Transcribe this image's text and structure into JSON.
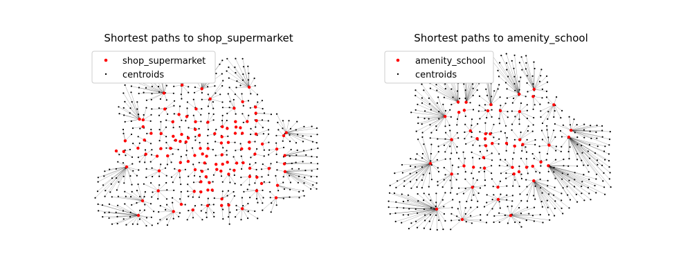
{
  "chart_data": [
    {
      "type": "scatter",
      "title": "Shortest paths to shop_supermarket",
      "xlabel": "",
      "ylabel": "",
      "grid": false,
      "axes_visible": false,
      "legend_placement": "upper-left",
      "series": [
        {
          "name": "shop_supermarket",
          "color": "#ff0000",
          "marker": "dot-large"
        },
        {
          "name": "centroids",
          "color": "#000000",
          "marker": "dot-small"
        }
      ],
      "overlay": "thin black line segments from each centroid to its nearest shop_supermarket",
      "seed": 11,
      "target_density": 0.62
    },
    {
      "type": "scatter",
      "title": "Shortest paths to amenity_school",
      "xlabel": "",
      "ylabel": "",
      "grid": false,
      "axes_visible": false,
      "legend_placement": "upper-left",
      "series": [
        {
          "name": "amenity_school",
          "color": "#ff0000",
          "marker": "dot-large"
        },
        {
          "name": "centroids",
          "color": "#000000",
          "marker": "dot-small"
        }
      ],
      "overlay": "thin black line segments from each centroid to its nearest amenity_school",
      "seed": 29,
      "target_density": 0.32
    }
  ]
}
